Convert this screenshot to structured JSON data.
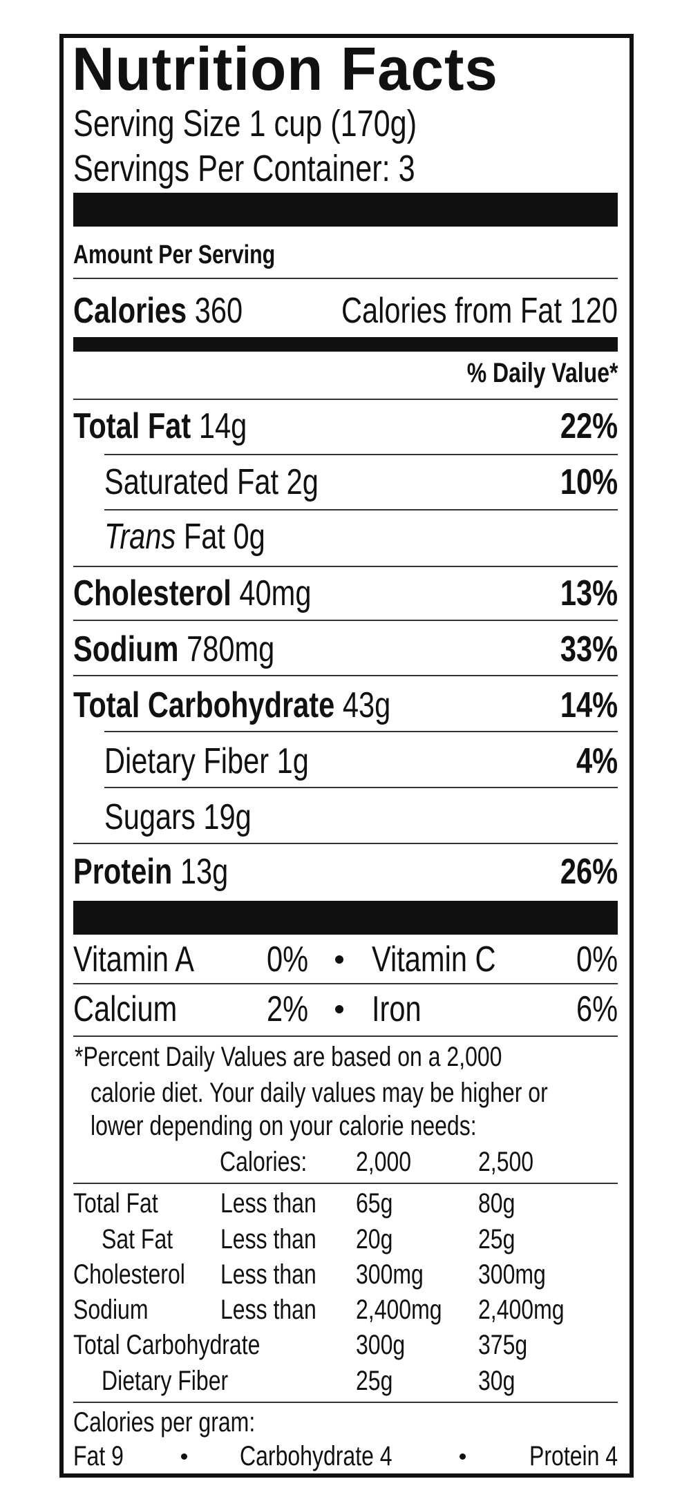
{
  "title": "Nutrition Facts",
  "serving_size": "Serving Size 1 cup (170g)",
  "servings_per_container": "Servings Per Container: 3",
  "amount_per_serving": "Amount Per Serving",
  "calories": {
    "label": "Calories",
    "value": "360",
    "from_fat": "Calories from Fat 120"
  },
  "daily_value_header": "% Daily Value*",
  "nutrients": [
    {
      "label": "Total Fat",
      "amount": "14g",
      "dv": "22%"
    },
    {
      "label": "Saturated Fat",
      "amount": "2g",
      "dv": "10%"
    },
    {
      "label": "Trans",
      "label2": "Fat",
      "amount": "0g"
    },
    {
      "label": "Cholesterol",
      "amount": "40mg",
      "dv": "13%"
    },
    {
      "label": "Sodium",
      "amount": "780mg",
      "dv": "33%"
    },
    {
      "label": "Total Carbohydrate",
      "amount": "43g",
      "dv": "14%"
    },
    {
      "label": "Dietary Fiber",
      "amount": "1g",
      "dv": "4%"
    },
    {
      "label": "Sugars",
      "amount": "19g"
    },
    {
      "label": "Protein",
      "amount": "13g",
      "dv": "26%"
    }
  ],
  "vitamins": [
    {
      "left": "Vitamin A",
      "left_dv": "0%",
      "right": "Vitamin C",
      "right_dv": "0%"
    },
    {
      "left": "Calcium",
      "left_dv": "2%",
      "right": "Iron",
      "right_dv": "6%"
    }
  ],
  "footnote": [
    "*Percent Daily Values are based on a 2,000",
    "calorie diet. Your daily values may be higher or",
    "lower depending on your calorie needs:"
  ],
  "dv_table": {
    "header": [
      "Calories:",
      "2,000",
      "2,500"
    ],
    "rows": [
      [
        "Total Fat",
        "Less than",
        "65g",
        "80g"
      ],
      [
        "Sat Fat",
        "Less than",
        "20g",
        "25g"
      ],
      [
        "Cholesterol",
        "Less than",
        "300mg",
        "300mg"
      ],
      [
        "Sodium",
        "Less than",
        "2,400mg",
        "2,400mg"
      ],
      [
        "Total Carbohydrate",
        "",
        "300g",
        "375g"
      ],
      [
        "Dietary Fiber",
        "",
        "25g",
        "30g"
      ]
    ]
  },
  "calories_per_gram": {
    "label": "Calories per gram:",
    "fat": "Fat 9",
    "carb": "Carbohydrate 4",
    "protein": "Protein 4"
  }
}
